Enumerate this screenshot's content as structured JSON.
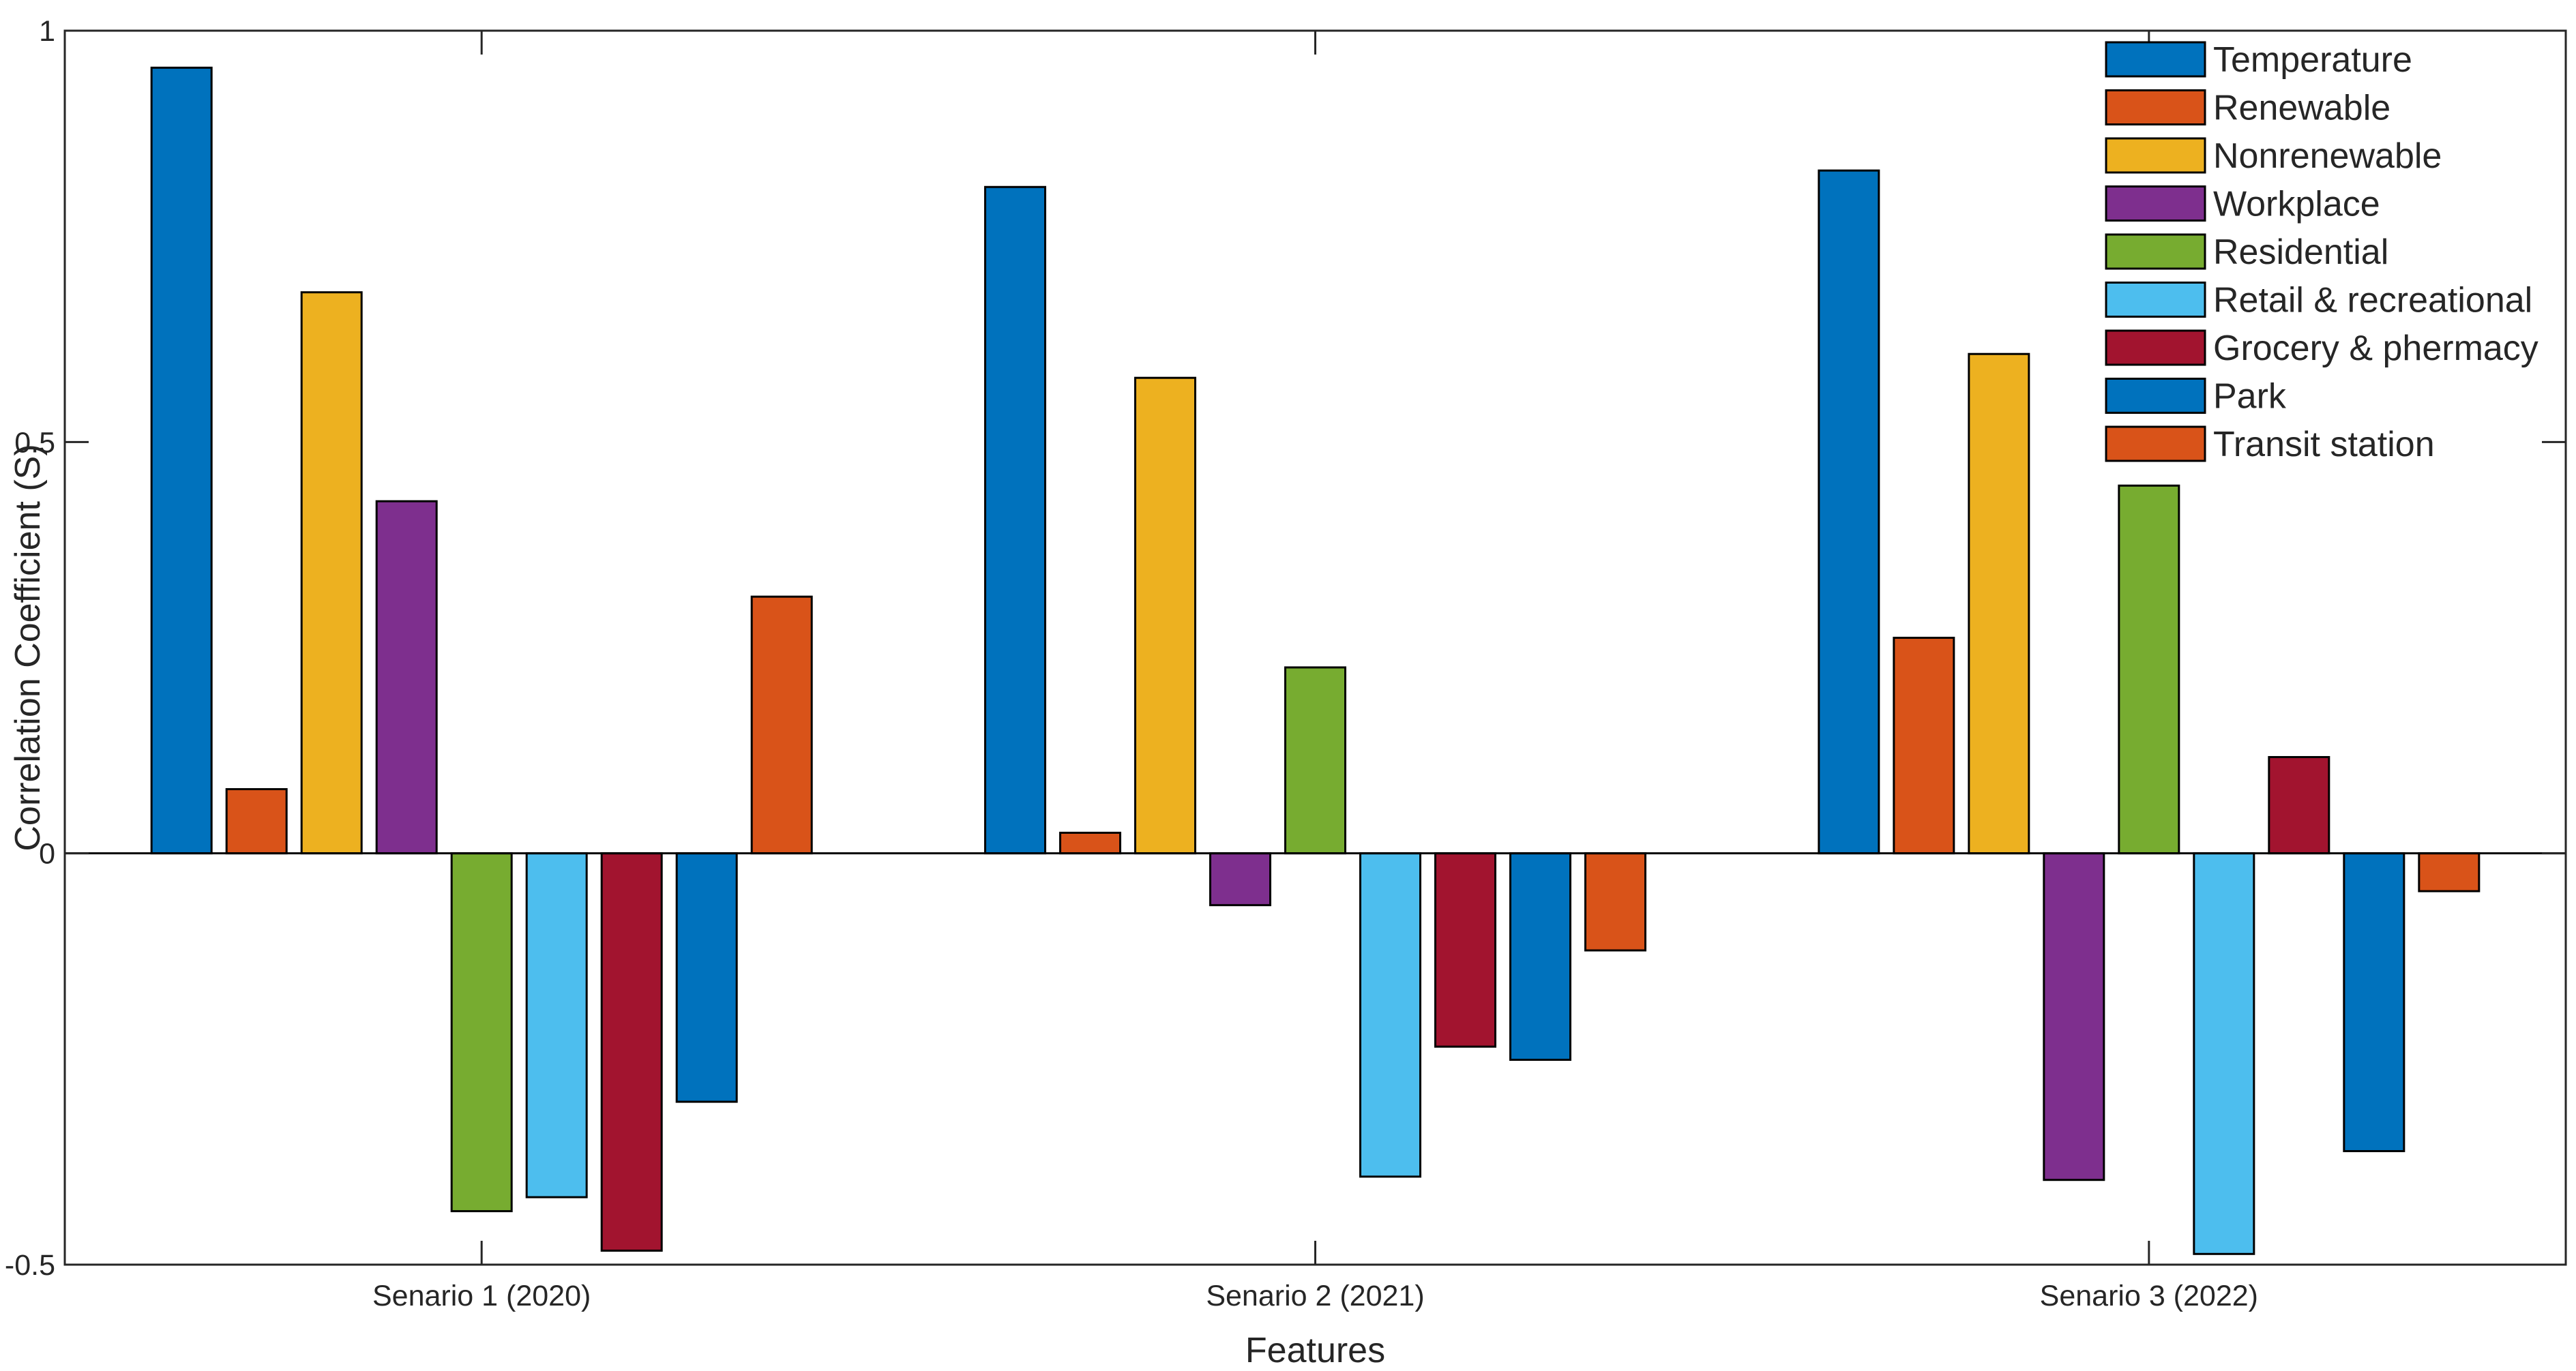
{
  "chart_data": {
    "type": "bar",
    "title": "",
    "xlabel": "Features",
    "ylabel": "Correlation Coefficient (S)",
    "ylim": [
      -0.5,
      1
    ],
    "yticks": [
      -0.5,
      0,
      0.5,
      1
    ],
    "ytick_labels": [
      "-0.5",
      "0",
      "0.5",
      "1"
    ],
    "grid": false,
    "legend_position": "top-right",
    "categories": [
      "Senario 1 (2020)",
      "Senario 2 (2021)",
      "Senario 3 (2022)"
    ],
    "series": [
      {
        "name": "Temperature",
        "color": "#0072BD",
        "values": [
          0.955,
          0.81,
          0.83
        ]
      },
      {
        "name": "Renewable",
        "color": "#D95319",
        "values": [
          0.078,
          0.025,
          0.262
        ]
      },
      {
        "name": "Nonrenewable",
        "color": "#EDB120",
        "values": [
          0.682,
          0.578,
          0.607
        ]
      },
      {
        "name": "Workplace",
        "color": "#7E2F8E",
        "values": [
          0.428,
          -0.063,
          -0.397
        ]
      },
      {
        "name": "Residential",
        "color": "#77AC30",
        "values": [
          -0.435,
          0.226,
          0.447
        ]
      },
      {
        "name": "Retail & recreational",
        "color": "#4DBEEE",
        "values": [
          -0.418,
          -0.393,
          -0.487
        ]
      },
      {
        "name": "Grocery & phermacy",
        "color": "#A2142F",
        "values": [
          -0.483,
          -0.235,
          0.117
        ]
      },
      {
        "name": "Park",
        "color": "#0072BD",
        "values": [
          -0.302,
          -0.251,
          -0.362
        ]
      },
      {
        "name": "Transit station",
        "color": "#D95319",
        "values": [
          0.312,
          -0.118,
          -0.046
        ]
      }
    ]
  }
}
